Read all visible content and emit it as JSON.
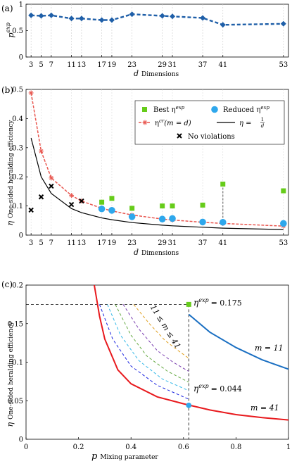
{
  "chart_data": [
    {
      "panel_label": "(a)",
      "type": "line",
      "ylabel": "p",
      "ylabel_sup": "exp",
      "xlabel_var": "d",
      "xlabel": "Dimensions",
      "xlim": [
        2,
        54
      ],
      "ylim": [
        0,
        1
      ],
      "x_ticks": [
        3,
        5,
        7,
        11,
        13,
        17,
        19,
        23,
        29,
        31,
        37,
        41,
        53
      ],
      "y_ticks": [
        0,
        0.5,
        1
      ],
      "x": [
        3,
        5,
        7,
        11,
        13,
        17,
        19,
        23,
        29,
        31,
        37,
        41,
        53
      ],
      "series": [
        {
          "color": "#1f5fa8",
          "style": "dashed-marker",
          "values": [
            0.79,
            0.78,
            0.79,
            0.73,
            0.73,
            0.7,
            0.7,
            0.81,
            0.78,
            0.77,
            0.74,
            0.61,
            0.63
          ]
        }
      ]
    },
    {
      "panel_label": "(b)",
      "type": "scatter",
      "ylabel_var": "η",
      "ylabel": "One-sided heralding efficiency",
      "xlabel_var": "d",
      "xlabel": "Dimensions",
      "xlim": [
        2,
        54
      ],
      "ylim": [
        0,
        0.5
      ],
      "x_ticks": [
        3,
        5,
        7,
        11,
        13,
        17,
        19,
        23,
        29,
        31,
        37,
        41,
        53
      ],
      "y_ticks": [
        0,
        0.1,
        0.2,
        0.3,
        0.4,
        0.5
      ],
      "legend_position": "top-right",
      "legend": {
        "best": "Best η",
        "best_sup": "exp",
        "reduced": "Reduced η",
        "reduced_sup": "exp",
        "critical": "η",
        "critical_sup": "cr",
        "critical_arg": "(m = d)",
        "bound": "η = ",
        "bound_frac_num": "1",
        "bound_frac_den": "d",
        "noviol": "No violations"
      },
      "colors": {
        "best": "#66cc1a",
        "reduced": "#2ea7ec",
        "critical": "#e8564f",
        "bound": "#000000",
        "noviol": "#000000"
      },
      "best_eta": {
        "x": [
          17,
          19,
          23,
          29,
          31,
          37,
          41,
          53
        ],
        "y": [
          0.113,
          0.126,
          0.092,
          0.1,
          0.1,
          0.103,
          0.175,
          0.152
        ]
      },
      "reduced_eta": {
        "x": [
          17,
          19,
          23,
          29,
          31,
          37,
          41,
          53
        ],
        "y": [
          0.09,
          0.085,
          0.063,
          0.055,
          0.057,
          0.045,
          0.044,
          0.04
        ]
      },
      "critical_eta": {
        "x": [
          3,
          5,
          7,
          11,
          13,
          17,
          19,
          23,
          29,
          31,
          37,
          41,
          53
        ],
        "y": [
          0.488,
          0.288,
          0.196,
          0.136,
          0.117,
          0.092,
          0.083,
          0.069,
          0.055,
          0.052,
          0.044,
          0.04,
          0.031
        ]
      },
      "bound_curve": {
        "x": [
          3,
          5,
          7,
          11,
          13,
          17,
          19,
          23,
          29,
          31,
          37,
          41,
          53
        ],
        "y": [
          0.333,
          0.2,
          0.143,
          0.091,
          0.077,
          0.059,
          0.053,
          0.043,
          0.034,
          0.032,
          0.027,
          0.024,
          0.019
        ]
      },
      "no_violations": {
        "x": [
          3,
          5,
          7,
          11,
          13
        ],
        "y": [
          0.086,
          0.131,
          0.168,
          0.105,
          0.117
        ]
      }
    },
    {
      "panel_label": "(c)",
      "type": "line",
      "ylabel_var": "η",
      "ylabel": "One-sided heralding efficiency",
      "xlabel_var": "p",
      "xlabel": "Mixing parameter",
      "xlim": [
        0,
        1
      ],
      "ylim": [
        0,
        0.2
      ],
      "x_ticks": [
        0,
        0.2,
        0.4,
        0.6,
        0.8,
        1
      ],
      "y_ticks": [
        0,
        0.05,
        0.1,
        0.15,
        0.2
      ],
      "curve_m11": {
        "label": "m = 11",
        "color": "#1a6fc2",
        "x": [
          0.62,
          0.7,
          0.8,
          0.9,
          1.0
        ],
        "y": [
          0.162,
          0.139,
          0.119,
          0.103,
          0.091
        ]
      },
      "curve_m41": {
        "label": "m = 41",
        "color": "#e8191d",
        "x": [
          0.26,
          0.28,
          0.3,
          0.35,
          0.4,
          0.5,
          0.6,
          0.7,
          0.8,
          0.9,
          1.0
        ],
        "y": [
          0.2,
          0.16,
          0.13,
          0.09,
          0.072,
          0.055,
          0.046,
          0.038,
          0.032,
          0.028,
          0.025
        ]
      },
      "intermediate_label": "11 ≤ m ≤ 41",
      "intermediate": [
        {
          "color": "#1a24e0",
          "x": [
            0.28,
            0.33,
            0.4,
            0.5,
            0.62
          ],
          "y": [
            0.175,
            0.13,
            0.095,
            0.07,
            0.052
          ]
        },
        {
          "color": "#33b8e8",
          "x": [
            0.31,
            0.36,
            0.43,
            0.52,
            0.62
          ],
          "y": [
            0.175,
            0.135,
            0.102,
            0.078,
            0.063
          ]
        },
        {
          "color": "#66aa44",
          "x": [
            0.34,
            0.4,
            0.46,
            0.54,
            0.62
          ],
          "y": [
            0.175,
            0.135,
            0.108,
            0.088,
            0.074
          ]
        },
        {
          "color": "#7a3fb0",
          "x": [
            0.37,
            0.43,
            0.5,
            0.56,
            0.62
          ],
          "y": [
            0.175,
            0.143,
            0.115,
            0.1,
            0.088
          ]
        },
        {
          "color": "#e0a020",
          "x": [
            0.41,
            0.47,
            0.53,
            0.58,
            0.62
          ],
          "y": [
            0.175,
            0.15,
            0.128,
            0.115,
            0.105
          ]
        }
      ],
      "annotation_high": {
        "text": "η",
        "sup": "exp",
        "value": "= 0.175",
        "x": 0.62,
        "y": 0.175,
        "color": "#66cc1a"
      },
      "annotation_low": {
        "text": "η",
        "sup": "exp",
        "value": "= 0.044",
        "x": 0.62,
        "y": 0.044,
        "color": "#2ea7ec"
      }
    }
  ]
}
